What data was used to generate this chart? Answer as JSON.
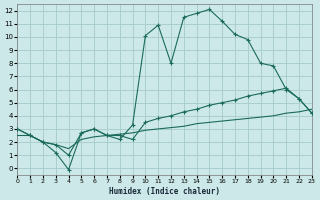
{
  "xlabel": "Humidex (Indice chaleur)",
  "bg_color": "#cce8e8",
  "grid_color": "#aacece",
  "line_color": "#1a6b5a",
  "x_min": 0,
  "x_max": 23,
  "y_min": -0.5,
  "y_max": 12.5,
  "line1_x": [
    0,
    1,
    2,
    3,
    4,
    5,
    6,
    7,
    8,
    9,
    10,
    11,
    12,
    13,
    14,
    15,
    16,
    17,
    18,
    19,
    20,
    21,
    22,
    23
  ],
  "line1_y": [
    3.0,
    2.5,
    2.0,
    1.2,
    -0.1,
    2.7,
    3.0,
    2.5,
    2.2,
    3.3,
    10.1,
    10.9,
    8.0,
    11.5,
    11.8,
    12.1,
    11.2,
    10.2,
    9.8,
    8.0,
    7.8,
    6.0,
    5.3,
    4.2
  ],
  "line2_x": [
    0,
    1,
    2,
    3,
    4,
    5,
    6,
    7,
    8,
    9,
    10,
    11,
    12,
    13,
    14,
    15,
    16,
    17,
    18,
    19,
    20,
    21,
    22,
    23
  ],
  "line2_y": [
    3.0,
    2.5,
    2.0,
    1.8,
    1.0,
    2.7,
    3.0,
    2.5,
    2.5,
    2.2,
    3.5,
    3.8,
    4.0,
    4.3,
    4.5,
    4.8,
    5.0,
    5.2,
    5.5,
    5.7,
    5.9,
    6.1,
    5.3,
    4.2
  ],
  "line3_x": [
    0,
    1,
    2,
    3,
    4,
    5,
    6,
    7,
    8,
    9,
    10,
    11,
    12,
    13,
    14,
    15,
    16,
    17,
    18,
    19,
    20,
    21,
    22,
    23
  ],
  "line3_y": [
    2.5,
    2.5,
    2.0,
    1.8,
    1.5,
    2.2,
    2.4,
    2.5,
    2.6,
    2.7,
    2.9,
    3.0,
    3.1,
    3.2,
    3.4,
    3.5,
    3.6,
    3.7,
    3.8,
    3.9,
    4.0,
    4.2,
    4.3,
    4.5
  ],
  "x_ticks": [
    0,
    1,
    2,
    3,
    4,
    5,
    6,
    7,
    8,
    9,
    10,
    11,
    12,
    13,
    14,
    15,
    16,
    17,
    18,
    19,
    20,
    21,
    22,
    23
  ],
  "y_ticks": [
    0,
    1,
    2,
    3,
    4,
    5,
    6,
    7,
    8,
    9,
    10,
    11,
    12
  ]
}
